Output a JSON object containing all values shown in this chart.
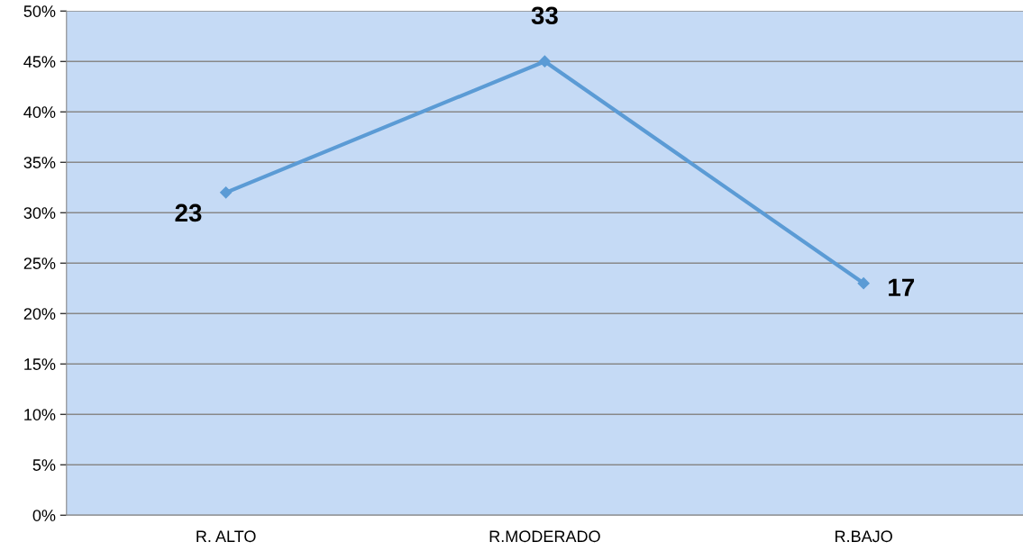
{
  "chart_data": {
    "type": "line",
    "categories": [
      "R. ALTO",
      "R.MODERADO",
      "R.BAJO"
    ],
    "series": [
      {
        "color": "#5b9bd5",
        "values": [
          32,
          45,
          23
        ]
      }
    ],
    "annotations": [
      {
        "text": "23",
        "x": "R. ALTO",
        "y": 32
      },
      {
        "text": "33",
        "x": "R.MODERADO",
        "y": 45
      },
      {
        "text": "17",
        "x": "R.BAJO",
        "y": 23
      }
    ],
    "ylim": [
      0,
      50
    ],
    "yticks": [
      {
        "value": 0,
        "label": "0%"
      },
      {
        "value": 5,
        "label": "5%"
      },
      {
        "value": 10,
        "label": "10%"
      },
      {
        "value": 15,
        "label": "15%"
      },
      {
        "value": 20,
        "label": "20%"
      },
      {
        "value": 25,
        "label": "25%"
      },
      {
        "value": 30,
        "label": "30%"
      },
      {
        "value": 35,
        "label": "35%"
      },
      {
        "value": 40,
        "label": "40%"
      },
      {
        "value": 45,
        "label": "45%"
      },
      {
        "value": 50,
        "label": "50%"
      }
    ],
    "grid": "y",
    "marker": "diamond",
    "line_style": "solid"
  }
}
